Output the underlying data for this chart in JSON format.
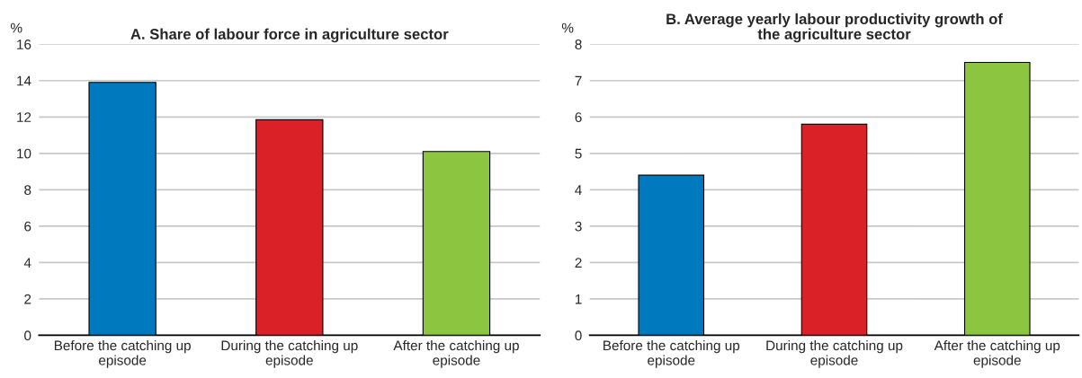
{
  "chart_data": [
    {
      "type": "bar",
      "title": "A. Share of labour force in agriculture sector",
      "ylabel": "%",
      "categories": [
        "Before the catching up episode",
        "During the catching up episode",
        "After the catching up episode"
      ],
      "values": [
        13.9,
        11.85,
        10.1
      ],
      "colors": [
        "#0179be",
        "#da2128",
        "#8cc641"
      ],
      "ylim": [
        0,
        16
      ],
      "yticks": [
        0,
        2,
        4,
        6,
        8,
        10,
        12,
        14,
        16
      ],
      "grid": "y",
      "legend": false
    },
    {
      "type": "bar",
      "title": "B. Average yearly labour productivity growth of the agriculture sector",
      "ylabel": "%",
      "categories": [
        "Before the catching up episode",
        "During the catching up episode",
        "After the catching up episode"
      ],
      "values": [
        4.4,
        5.8,
        7.5
      ],
      "colors": [
        "#0179be",
        "#da2128",
        "#8cc641"
      ],
      "ylim": [
        0,
        8
      ],
      "yticks": [
        0,
        1,
        2,
        3,
        4,
        5,
        6,
        7,
        8
      ],
      "grid": "y",
      "legend": false
    }
  ]
}
